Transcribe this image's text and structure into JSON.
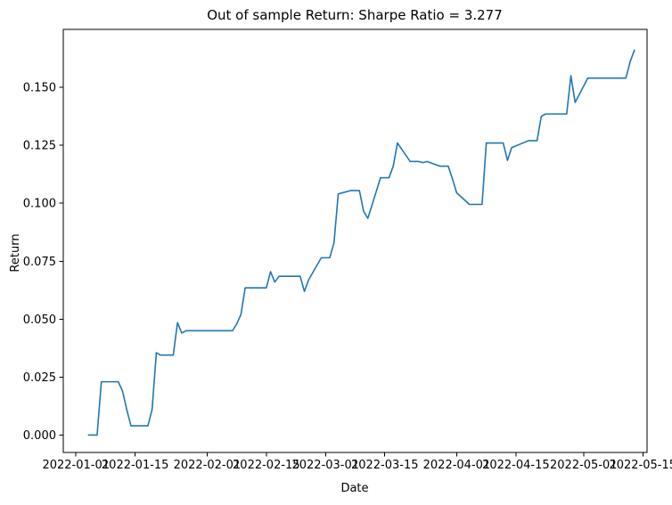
{
  "chart_data": {
    "type": "line",
    "title": "Out of sample Return: Sharpe Ratio = 3.277",
    "xlabel": "Date",
    "ylabel": "Return",
    "x_range": [
      "2021-12-29",
      "2022-05-16"
    ],
    "ylim": [
      -0.0075,
      0.175
    ],
    "grid": false,
    "legend": "none",
    "line_color": "#1f77b4",
    "x_ticks": [
      "2022-01-01",
      "2022-01-15",
      "2022-02-01",
      "2022-02-15",
      "2022-03-01",
      "2022-03-15",
      "2022-04-01",
      "2022-04-15",
      "2022-05-01",
      "2022-05-15"
    ],
    "y_ticks": [
      0.0,
      0.025,
      0.05,
      0.075,
      0.1,
      0.125,
      0.15
    ],
    "y_tick_labels": [
      "0.000",
      "0.025",
      "0.050",
      "0.075",
      "0.100",
      "0.125",
      "0.150"
    ],
    "series": [
      {
        "x": [
          "2022-01-04",
          "2022-01-06",
          "2022-01-07",
          "2022-01-10",
          "2022-01-11",
          "2022-01-12",
          "2022-01-13",
          "2022-01-14",
          "2022-01-18",
          "2022-01-19",
          "2022-01-20",
          "2022-01-21",
          "2022-01-24",
          "2022-01-25",
          "2022-01-26",
          "2022-01-27",
          "2022-01-28",
          "2022-01-31",
          "2022-02-01",
          "2022-02-02",
          "2022-02-03",
          "2022-02-04",
          "2022-02-07",
          "2022-02-08",
          "2022-02-09",
          "2022-02-10",
          "2022-02-11",
          "2022-02-14",
          "2022-02-15",
          "2022-02-16",
          "2022-02-17",
          "2022-02-18",
          "2022-02-22",
          "2022-02-23",
          "2022-02-24",
          "2022-02-25",
          "2022-02-28",
          "2022-03-01",
          "2022-03-02",
          "2022-03-03",
          "2022-03-04",
          "2022-03-07",
          "2022-03-08",
          "2022-03-09",
          "2022-03-10",
          "2022-03-11",
          "2022-03-14",
          "2022-03-15",
          "2022-03-16",
          "2022-03-17",
          "2022-03-18",
          "2022-03-21",
          "2022-03-22",
          "2022-03-23",
          "2022-03-24",
          "2022-03-25",
          "2022-03-28",
          "2022-03-29",
          "2022-03-30",
          "2022-03-31",
          "2022-04-01",
          "2022-04-04",
          "2022-04-05",
          "2022-04-06",
          "2022-04-07",
          "2022-04-08",
          "2022-04-11",
          "2022-04-12",
          "2022-04-13",
          "2022-04-14",
          "2022-04-18",
          "2022-04-19",
          "2022-04-20",
          "2022-04-21",
          "2022-04-22",
          "2022-04-25",
          "2022-04-26",
          "2022-04-27",
          "2022-04-28",
          "2022-04-29",
          "2022-05-02",
          "2022-05-03",
          "2022-05-04",
          "2022-05-05",
          "2022-05-06",
          "2022-05-09",
          "2022-05-10",
          "2022-05-11",
          "2022-05-12",
          "2022-05-13"
        ],
        "y": [
          0.0,
          0.0,
          0.023,
          0.023,
          0.023,
          0.019,
          0.011,
          0.004,
          0.004,
          0.011,
          0.0355,
          0.0345,
          0.0345,
          0.0485,
          0.044,
          0.045,
          0.045,
          0.045,
          0.045,
          0.045,
          0.045,
          0.045,
          0.045,
          0.048,
          0.052,
          0.0635,
          0.0635,
          0.0635,
          0.0635,
          0.0705,
          0.066,
          0.0685,
          0.0685,
          0.0685,
          0.062,
          0.067,
          0.0765,
          0.0765,
          0.0765,
          0.083,
          0.104,
          0.1055,
          0.1055,
          0.1055,
          0.0965,
          0.0935,
          0.111,
          0.111,
          0.111,
          0.116,
          0.126,
          0.118,
          0.118,
          0.118,
          0.1175,
          0.118,
          0.116,
          0.116,
          0.116,
          0.1105,
          0.1045,
          0.0995,
          0.0995,
          0.0995,
          0.0995,
          0.126,
          0.126,
          0.126,
          0.1185,
          0.124,
          0.127,
          0.127,
          0.127,
          0.1375,
          0.1385,
          0.1385,
          0.1385,
          0.1385,
          0.155,
          0.1435,
          0.154,
          0.154,
          0.154,
          0.154,
          0.154,
          0.154,
          0.154,
          0.154,
          0.161,
          0.166
        ]
      }
    ]
  }
}
